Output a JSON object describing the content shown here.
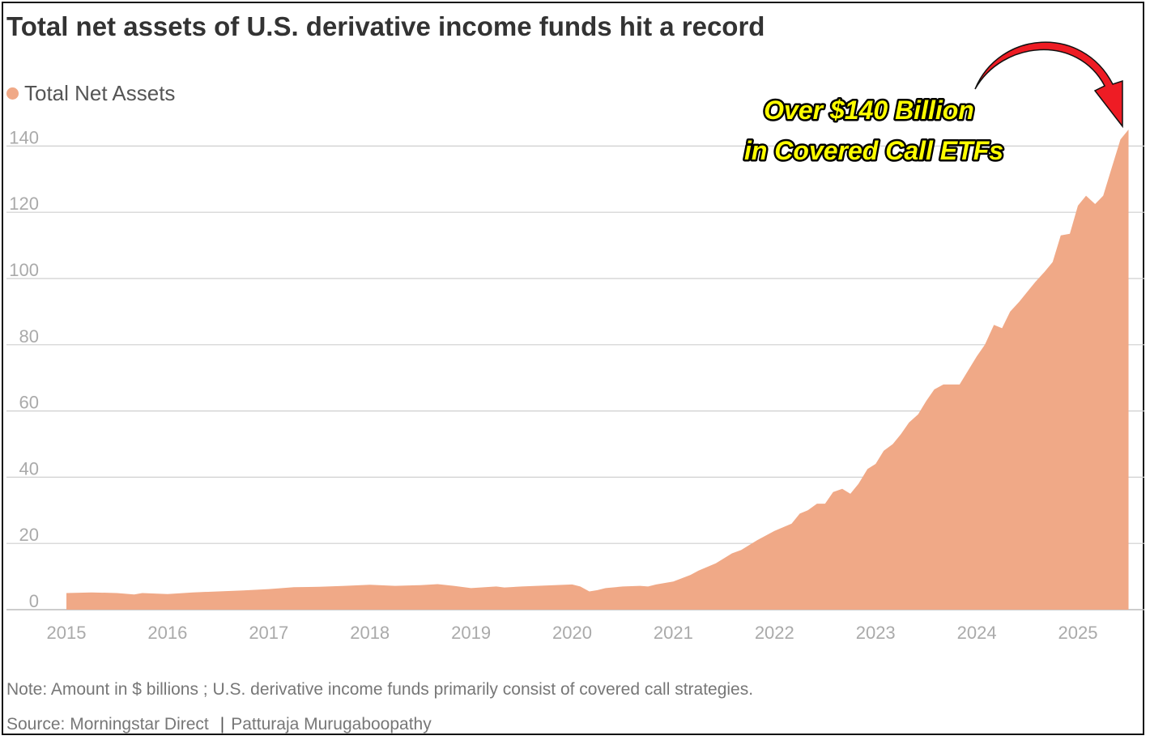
{
  "colors": {
    "area": "#f0a987",
    "grid": "#cfcfcf",
    "arrow": "#ee1c24",
    "annotation_fill": "#ffff00"
  },
  "chart_data": {
    "type": "area",
    "title": "Total net assets of U.S. derivative income funds hit a record",
    "legend": {
      "label": "Total Net Assets",
      "placement": "top-left"
    },
    "xlabel": "",
    "ylabel": "",
    "xlim": [
      2015,
      2025.65
    ],
    "ylim": [
      0,
      150
    ],
    "x_ticks": [
      2015,
      2016,
      2017,
      2018,
      2019,
      2020,
      2021,
      2022,
      2023,
      2024,
      2025
    ],
    "y_ticks": [
      0,
      20,
      40,
      60,
      80,
      100,
      120,
      140
    ],
    "grid": "horizontal",
    "annotation": {
      "lines": [
        "Over $140 Billion",
        "in Covered Call ETFs"
      ],
      "arrow_to": [
        2025.5,
        145
      ]
    },
    "series": [
      {
        "name": "Total Net Assets",
        "x": [
          2015.0,
          2015.25,
          2015.5,
          2015.67,
          2015.75,
          2016.0,
          2016.25,
          2016.5,
          2016.75,
          2017.0,
          2017.25,
          2017.5,
          2017.75,
          2018.0,
          2018.25,
          2018.5,
          2018.67,
          2018.83,
          2019.0,
          2019.25,
          2019.33,
          2019.5,
          2019.75,
          2020.0,
          2020.08,
          2020.17,
          2020.25,
          2020.33,
          2020.5,
          2020.67,
          2020.75,
          2020.83,
          2021.0,
          2021.17,
          2021.25,
          2021.42,
          2021.58,
          2021.67,
          2021.83,
          2022.0,
          2022.17,
          2022.25,
          2022.33,
          2022.42,
          2022.5,
          2022.58,
          2022.67,
          2022.75,
          2022.83,
          2022.92,
          2023.0,
          2023.08,
          2023.17,
          2023.25,
          2023.33,
          2023.42,
          2023.5,
          2023.58,
          2023.67,
          2023.75,
          2023.83,
          2023.92,
          2024.0,
          2024.08,
          2024.17,
          2024.25,
          2024.33,
          2024.42,
          2024.5,
          2024.58,
          2024.67,
          2024.75,
          2024.83,
          2024.92,
          2025.0,
          2025.08,
          2025.17,
          2025.25,
          2025.33,
          2025.42,
          2025.5
        ],
        "values": [
          5.0,
          5.2,
          5.0,
          4.6,
          5.0,
          4.7,
          5.2,
          5.5,
          5.8,
          6.2,
          6.8,
          6.9,
          7.2,
          7.5,
          7.2,
          7.4,
          7.7,
          7.2,
          6.5,
          7.0,
          6.7,
          7.0,
          7.3,
          7.6,
          7.0,
          5.5,
          5.9,
          6.5,
          7.0,
          7.2,
          7.0,
          7.6,
          8.5,
          10.5,
          11.8,
          14.0,
          17.0,
          18.0,
          21.0,
          23.8,
          26.0,
          29.0,
          30.0,
          32.0,
          32.0,
          35.5,
          36.5,
          35.0,
          38.0,
          42.5,
          44.0,
          48.0,
          50.0,
          53.0,
          56.5,
          59.0,
          63.0,
          66.5,
          68.0,
          68.0,
          68.0,
          72.5,
          76.5,
          80.0,
          86.0,
          85.0,
          90.0,
          93.0,
          96.0,
          99.0,
          102.0,
          105.0,
          113.0,
          113.5,
          122.0,
          125.0,
          122.5,
          125.0,
          133.0,
          142.0,
          145.0
        ]
      }
    ]
  },
  "footer": {
    "note": "Note: Amount in $ billions ; U.S. derivative income funds primarily consist of covered call strategies.",
    "source": "Source: Morningstar Direct",
    "separator": "|",
    "author": "Patturaja Murugaboopathy"
  }
}
